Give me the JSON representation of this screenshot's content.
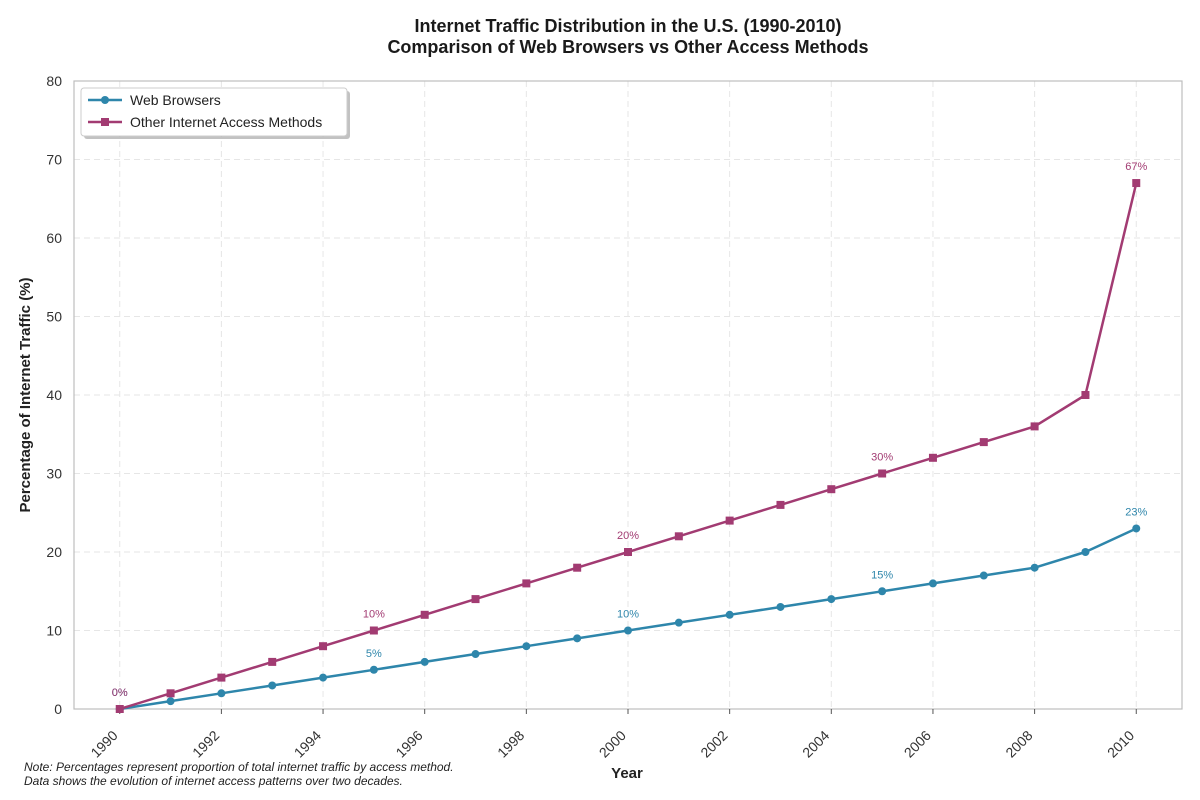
{
  "chart_data": {
    "type": "line",
    "title": "Internet Traffic Distribution in the U.S. (1990-2010)",
    "subtitle": "Comparison of Web Browsers vs Other Access Methods",
    "xlabel": "Year",
    "ylabel": "Percentage of Internet Traffic (%)",
    "xlim": [
      1989.1,
      2010.9
    ],
    "ylim": [
      0,
      80
    ],
    "x_ticks": [
      1990,
      1992,
      1994,
      1996,
      1998,
      2000,
      2002,
      2004,
      2006,
      2008,
      2010
    ],
    "y_ticks": [
      0,
      10,
      20,
      30,
      40,
      50,
      60,
      70,
      80
    ],
    "grid": true,
    "legend_position": "top-left",
    "x": [
      1990,
      1991,
      1992,
      1993,
      1994,
      1995,
      1996,
      1997,
      1998,
      1999,
      2000,
      2001,
      2002,
      2003,
      2004,
      2005,
      2006,
      2007,
      2008,
      2009,
      2010
    ],
    "series": [
      {
        "name": "Web Browsers",
        "color": "#2e86ab",
        "marker": "circle",
        "values": [
          0,
          1,
          2,
          3,
          4,
          5,
          6,
          7,
          8,
          9,
          10,
          11,
          12,
          13,
          14,
          15,
          16,
          17,
          18,
          20,
          23
        ]
      },
      {
        "name": "Other Internet Access Methods",
        "color": "#a23b72",
        "marker": "square",
        "values": [
          0,
          2,
          4,
          6,
          8,
          10,
          12,
          14,
          16,
          18,
          20,
          22,
          24,
          26,
          28,
          30,
          32,
          34,
          36,
          40,
          67
        ]
      }
    ],
    "annotations": [
      {
        "series": 0,
        "x": 1990,
        "y": 0,
        "text": "0%"
      },
      {
        "series": 0,
        "x": 1995,
        "y": 5,
        "text": "5%"
      },
      {
        "series": 0,
        "x": 2000,
        "y": 10,
        "text": "10%"
      },
      {
        "series": 0,
        "x": 2005,
        "y": 15,
        "text": "15%"
      },
      {
        "series": 0,
        "x": 2010,
        "y": 23,
        "text": "23%"
      },
      {
        "series": 1,
        "x": 1990,
        "y": 0,
        "text": "0%"
      },
      {
        "series": 1,
        "x": 1995,
        "y": 10,
        "text": "10%"
      },
      {
        "series": 1,
        "x": 2000,
        "y": 20,
        "text": "20%"
      },
      {
        "series": 1,
        "x": 2005,
        "y": 30,
        "text": "30%"
      },
      {
        "series": 1,
        "x": 2010,
        "y": 67,
        "text": "67%"
      }
    ]
  },
  "footnote": {
    "line1": "Note: Percentages represent proportion of total internet traffic by access method.",
    "line2": "Data shows the evolution of internet access patterns over two decades."
  }
}
